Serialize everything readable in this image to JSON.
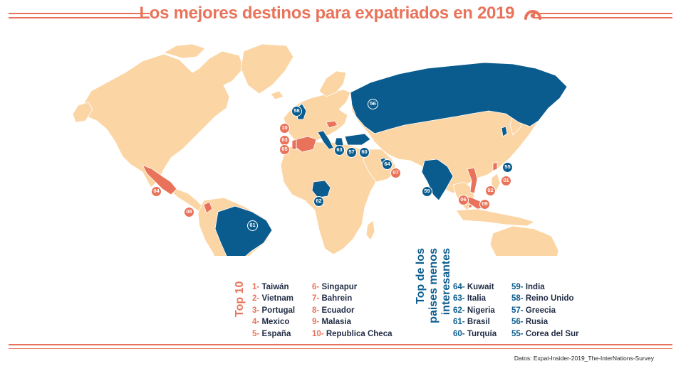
{
  "title": "Los mejores destinos para expatriados en 2019",
  "colors": {
    "land": "#fcd5a4",
    "top10": "#e9735a",
    "bottom": "#0b5c8e",
    "text": "#1f2a44"
  },
  "top10": {
    "heading": "Top 10",
    "col1": [
      {
        "num": "1-",
        "name": "Taiwán"
      },
      {
        "num": "2-",
        "name": "Vietnam"
      },
      {
        "num": "3-",
        "name": "Portugal"
      },
      {
        "num": "4-",
        "name": "Mexico"
      },
      {
        "num": "5-",
        "name": "España"
      }
    ],
    "col2": [
      {
        "num": "6-",
        "name": "Singapur"
      },
      {
        "num": "7-",
        "name": "Bahrein"
      },
      {
        "num": "8-",
        "name": "Ecuador"
      },
      {
        "num": "9-",
        "name": "Malasia"
      },
      {
        "num": "10-",
        "name": "Republica Checa"
      }
    ]
  },
  "bottom": {
    "heading": "Top de los paises menos interesantes",
    "col1": [
      {
        "num": "64-",
        "name": "Kuwait"
      },
      {
        "num": "63-",
        "name": "Italia"
      },
      {
        "num": "62-",
        "name": "Nigeria"
      },
      {
        "num": "61-",
        "name": "Brasil"
      },
      {
        "num": "60-",
        "name": "Turquía"
      }
    ],
    "col2": [
      {
        "num": "59-",
        "name": "India"
      },
      {
        "num": "58-",
        "name": "Reino Unido"
      },
      {
        "num": "57-",
        "name": "Greecia"
      },
      {
        "num": "56-",
        "name": "Rusia"
      },
      {
        "num": "55-",
        "name": "Corea del Sur"
      }
    ]
  },
  "markers": {
    "top": [
      "01",
      "02",
      "03",
      "04",
      "05",
      "06",
      "07",
      "08",
      "09",
      "10"
    ],
    "bottom": [
      "55",
      "56",
      "57",
      "58",
      "59",
      "60",
      "61",
      "62",
      "63",
      "64"
    ]
  },
  "source": "Datos: Expat-Insider-2019_The-InterNations-Survey"
}
